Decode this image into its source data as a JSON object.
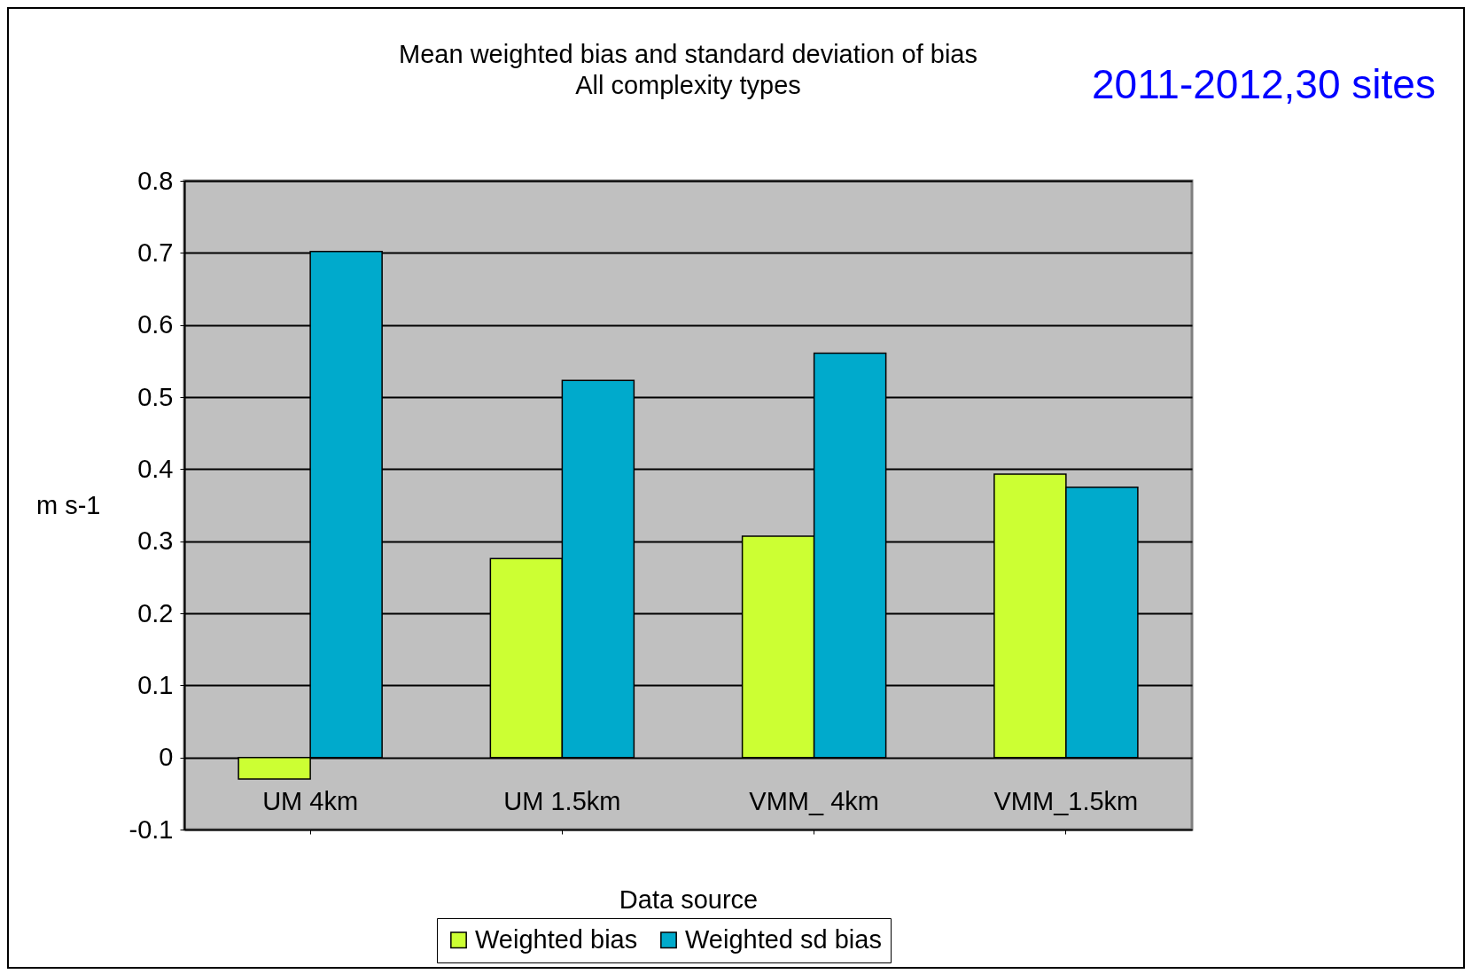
{
  "chart_data": {
    "type": "bar",
    "title": "Mean weighted bias and standard deviation of bias",
    "subtitle": "All complexity types",
    "xlabel": "Data source",
    "ylabel": "m s-1",
    "categories": [
      "UM 4km",
      "UM 1.5km",
      "VMM_ 4km",
      "VMM_1.5km"
    ],
    "series": [
      {
        "name": "Weighted bias",
        "color": "#ccff33",
        "values": [
          -0.03,
          0.276,
          0.307,
          0.393
        ]
      },
      {
        "name": "Weighted sd bias",
        "color": "#00aacc",
        "values": [
          0.702,
          0.523,
          0.561,
          0.375
        ]
      }
    ],
    "ylim": [
      -0.1,
      0.8
    ],
    "yticks": [
      -0.1,
      0,
      0.1,
      0.2,
      0.3,
      0.4,
      0.5,
      0.6,
      0.7,
      0.8
    ],
    "grid": "y",
    "legend": "bottom",
    "annotations": [
      "2011-2012,30 sites"
    ]
  }
}
